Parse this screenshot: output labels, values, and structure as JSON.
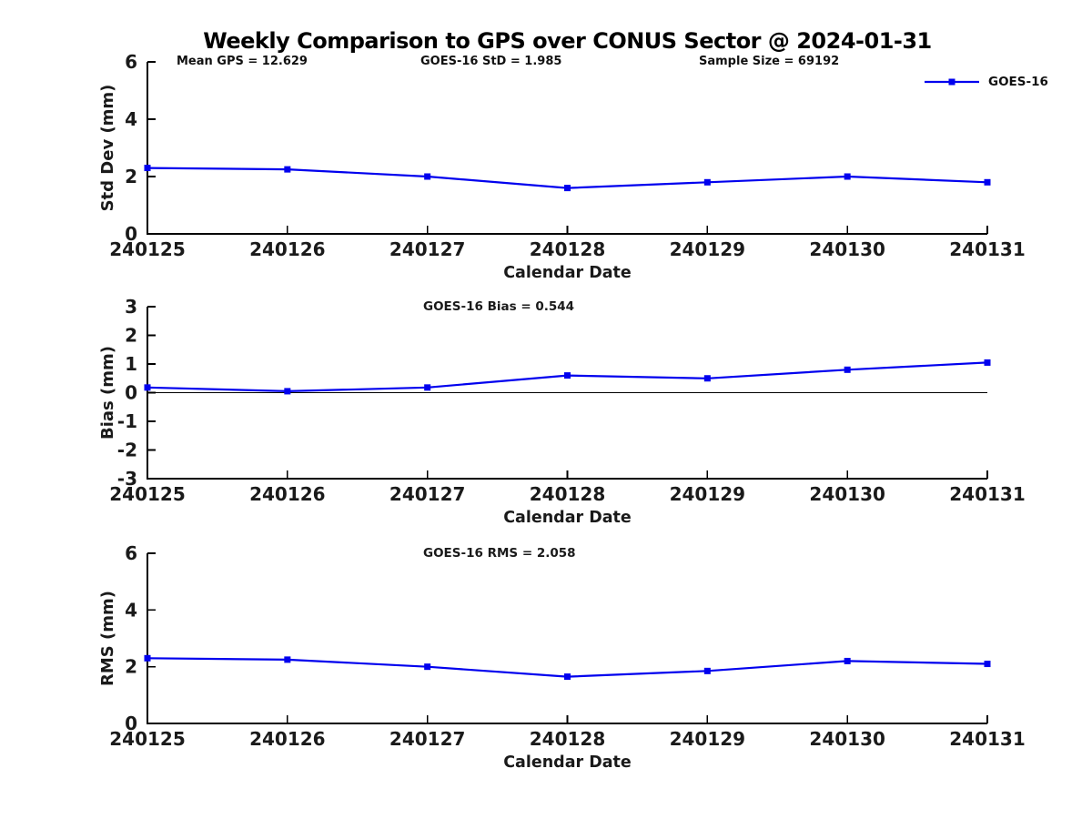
{
  "header": {
    "title": "Weekly Comparison to GPS over CONUS Sector @ 2024-01-31"
  },
  "annotations": {
    "mean_gps": "Mean GPS = 12.629",
    "std": "GOES-16 StD = 1.985",
    "sample_size": "Sample Size = 69192"
  },
  "legend": {
    "label": "GOES-16",
    "position": "top-right",
    "color": "#0000EE"
  },
  "colors": {
    "series": "#0000EE",
    "axis": "#000000",
    "zero_line": "#000000",
    "background": "#FFFFFF"
  },
  "chart_data": [
    {
      "type": "line",
      "title": "",
      "ylabel": "Std Dev (mm)",
      "xlabel": "Calendar Date",
      "categories": [
        "240125",
        "240126",
        "240127",
        "240128",
        "240129",
        "240130",
        "240131"
      ],
      "series": [
        {
          "name": "GOES-16",
          "values": [
            2.3,
            2.25,
            2.0,
            1.6,
            1.8,
            2.0,
            1.8
          ]
        }
      ],
      "ylim": [
        0,
        6
      ],
      "yticks": [
        0,
        2,
        4,
        6
      ],
      "grid": false,
      "zero_line": false,
      "legend_position": "top-right"
    },
    {
      "type": "line",
      "title": "GOES-16 Bias  = 0.544",
      "ylabel": "Bias (mm)",
      "xlabel": "Calendar Date",
      "categories": [
        "240125",
        "240126",
        "240127",
        "240128",
        "240129",
        "240130",
        "240131"
      ],
      "series": [
        {
          "name": "GOES-16",
          "values": [
            0.18,
            0.05,
            0.18,
            0.6,
            0.5,
            0.8,
            1.05
          ]
        }
      ],
      "ylim": [
        -3,
        3
      ],
      "yticks": [
        -3,
        -2,
        -1,
        0,
        1,
        2,
        3
      ],
      "grid": false,
      "zero_line": true
    },
    {
      "type": "line",
      "title": "GOES-16 RMS = 2.058",
      "ylabel": "RMS (mm)",
      "xlabel": "Calendar Date",
      "categories": [
        "240125",
        "240126",
        "240127",
        "240128",
        "240129",
        "240130",
        "240131"
      ],
      "series": [
        {
          "name": "GOES-16",
          "values": [
            2.3,
            2.25,
            2.0,
            1.65,
            1.85,
            2.2,
            2.1
          ]
        }
      ],
      "ylim": [
        0,
        6
      ],
      "yticks": [
        0,
        2,
        4,
        6
      ],
      "grid": false,
      "zero_line": false
    }
  ]
}
